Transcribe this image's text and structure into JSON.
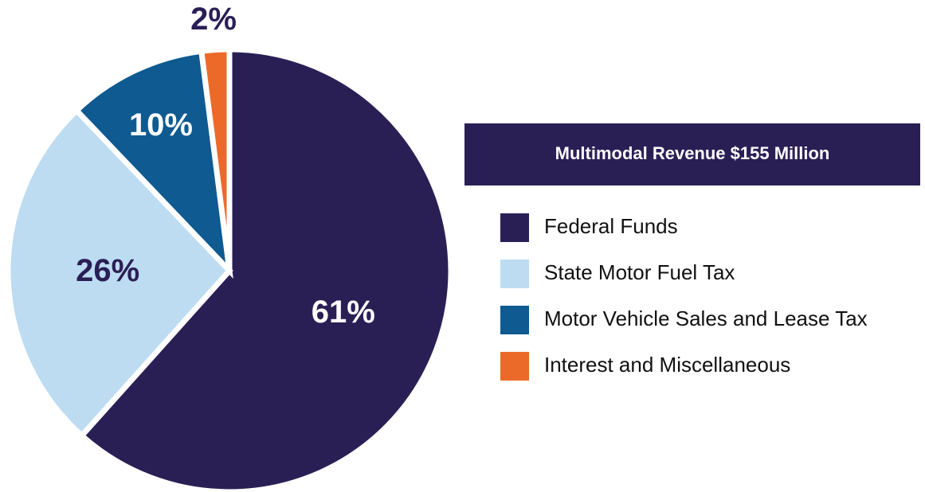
{
  "chart_data": {
    "type": "pie",
    "title": "Multimodal Revenue $155 Million",
    "categories": [
      "Federal Funds",
      "State Motor Fuel Tax",
      "Motor Vehicle Sales and Lease Tax",
      "Interest and Miscellaneous"
    ],
    "values": [
      61,
      26,
      10,
      2
    ],
    "value_labels": [
      "61%",
      "26%",
      "10%",
      "2%"
    ],
    "colors": [
      "#2a1f55",
      "#bddcf2",
      "#0e5a91",
      "#ec6a29"
    ],
    "legend": "right"
  }
}
